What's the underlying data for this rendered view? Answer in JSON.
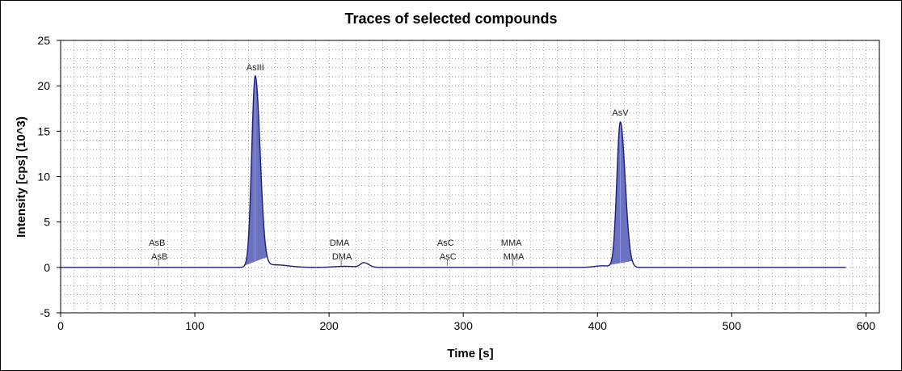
{
  "chart_data": {
    "type": "line",
    "title": "Traces of selected compounds",
    "xlabel": "Time [s]",
    "ylabel": "Intensity [cps] (10^3)",
    "xlim": [
      0,
      610
    ],
    "ylim": [
      -5,
      25
    ],
    "x_ticks": [
      0,
      100,
      200,
      300,
      400,
      500,
      600
    ],
    "y_ticks": [
      -5,
      0,
      5,
      10,
      15,
      20,
      25
    ],
    "grid": "dotted",
    "series_color": "#1a1f7a",
    "fill_color": "#5b63b8",
    "trace_start": 0,
    "trace_end": 585,
    "peaks": [
      {
        "label": "AsIII",
        "rt": 145,
        "height": 21.0,
        "integrated": true
      },
      {
        "label": "AsV",
        "rt": 417,
        "height": 16.0,
        "integrated": true
      },
      {
        "label": "DMA",
        "rt": 226,
        "height": 0.5,
        "integrated": false
      }
    ],
    "markers": [
      {
        "label_top": "AsB",
        "label_bottom": "AsB",
        "rt": 73
      },
      {
        "label_top": "DMA",
        "label_bottom": "DMA",
        "rt": 209
      },
      {
        "label_top": "AsC",
        "label_bottom": "AsC",
        "rt": 288
      },
      {
        "label_top": "MMA",
        "label_bottom": "MMA",
        "rt": 337
      }
    ]
  }
}
